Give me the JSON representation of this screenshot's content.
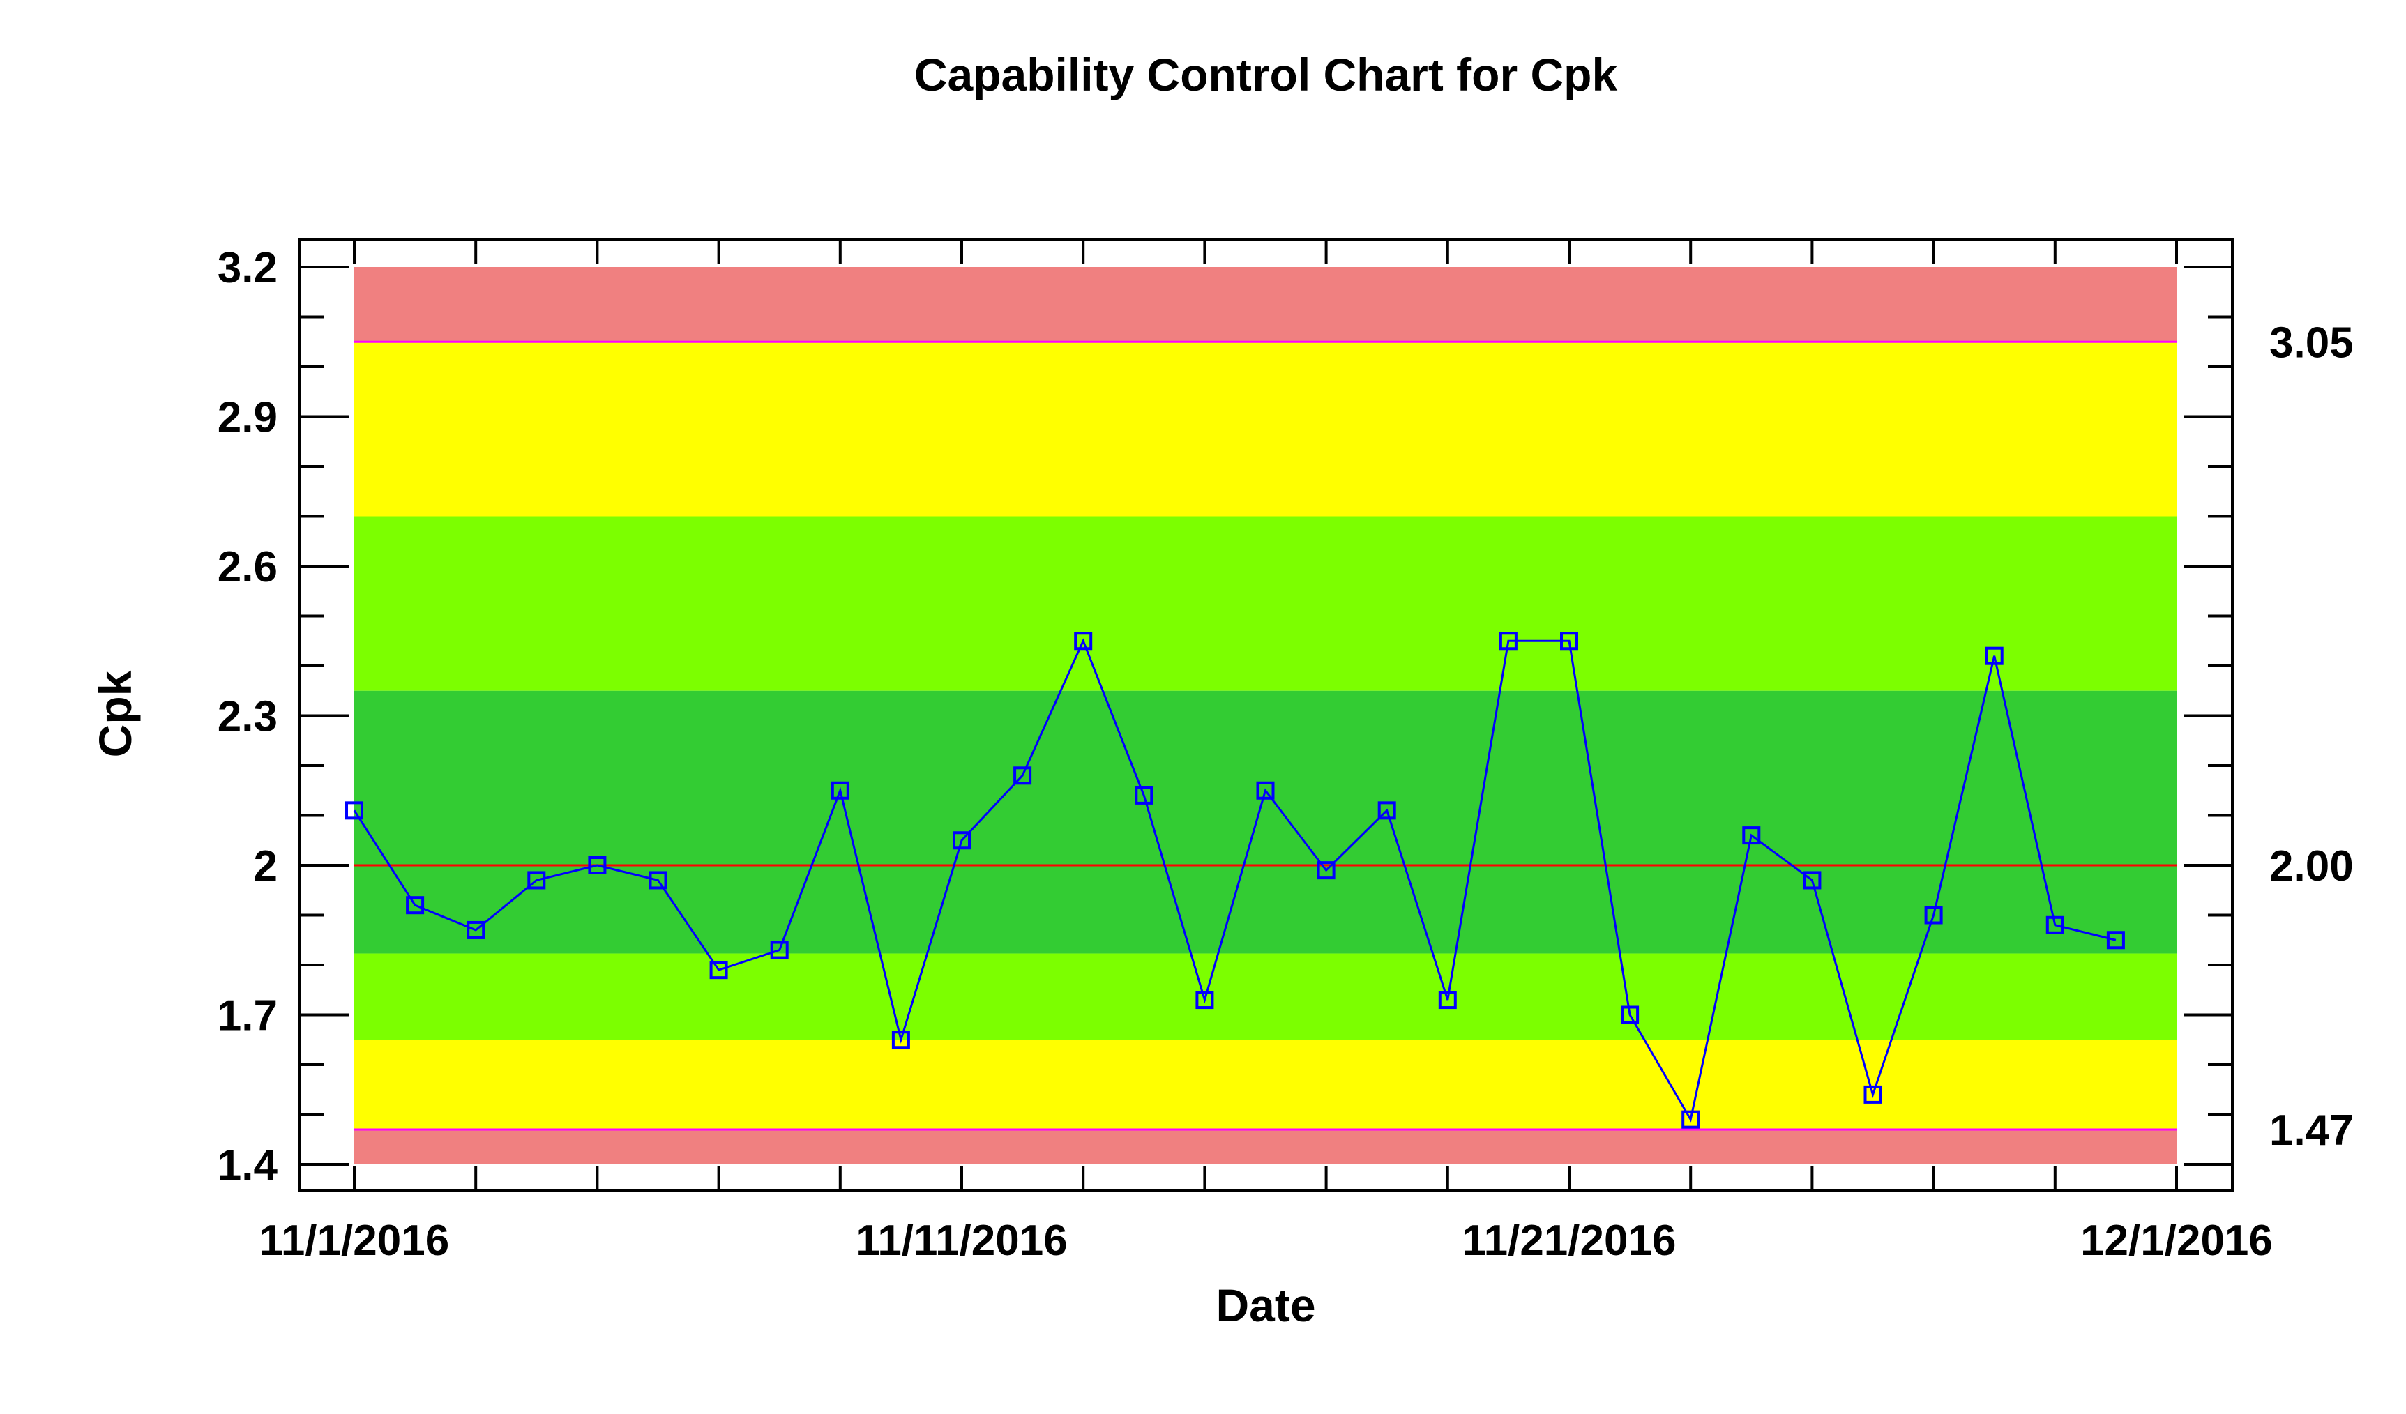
{
  "chart_data": {
    "type": "line",
    "title": "Capability Control Chart for Cpk",
    "xlabel": "Date",
    "ylabel": "Cpk",
    "x": [
      "11/1/2016",
      "11/2/2016",
      "11/3/2016",
      "11/4/2016",
      "11/5/2016",
      "11/6/2016",
      "11/7/2016",
      "11/8/2016",
      "11/9/2016",
      "11/10/2016",
      "11/11/2016",
      "11/12/2016",
      "11/13/2016",
      "11/14/2016",
      "11/15/2016",
      "11/16/2016",
      "11/17/2016",
      "11/18/2016",
      "11/19/2016",
      "11/20/2016",
      "11/21/2016",
      "11/22/2016",
      "11/23/2016",
      "11/24/2016",
      "11/25/2016",
      "11/26/2016",
      "11/27/2016",
      "11/28/2016",
      "11/29/2016",
      "11/30/2016"
    ],
    "series": [
      {
        "values": [
          2.11,
          1.92,
          1.87,
          1.97,
          2.0,
          1.97,
          1.79,
          1.83,
          2.15,
          1.65,
          2.05,
          2.18,
          2.45,
          2.14,
          1.73,
          2.15,
          1.99,
          2.11,
          1.73,
          2.45,
          2.45,
          1.7,
          1.49,
          2.06,
          1.97,
          1.54,
          1.9,
          2.42,
          1.88,
          1.85
        ],
        "color": "#0000ff",
        "marker": "square"
      }
    ],
    "xlim": [
      "11/1/2016",
      "12/1/2016"
    ],
    "ylim": [
      1.4,
      3.2
    ],
    "x_tick_labels": [
      "11/1/2016",
      "11/11/2016",
      "11/21/2016",
      "12/1/2016"
    ],
    "y_tick_labels": [
      "3.2",
      "2.9",
      "2.6",
      "2.3",
      "2",
      "1.7",
      "1.4"
    ],
    "y_ticks": [
      3.2,
      2.9,
      2.6,
      2.3,
      2.0,
      1.7,
      1.4
    ],
    "right_axis_labels": [
      "3.05",
      "2.00",
      "1.47"
    ],
    "right_axis_values": [
      3.05,
      2.0,
      1.47
    ],
    "center_line": {
      "value": 2.0,
      "color": "#ff0000"
    },
    "limit_lines": {
      "values": [
        3.05,
        1.47
      ],
      "color": "#ff00ff"
    },
    "zones": [
      {
        "from": 3.05,
        "to": 3.2,
        "color": "#f08080"
      },
      {
        "from": 2.7,
        "to": 3.05,
        "color": "#ffff00"
      },
      {
        "from": 2.35,
        "to": 2.7,
        "color": "#7cff00"
      },
      {
        "from": 1.823,
        "to": 2.35,
        "color": "#33cc33"
      },
      {
        "from": 1.65,
        "to": 1.823,
        "color": "#7cff00"
      },
      {
        "from": 1.47,
        "to": 1.65,
        "color": "#ffff00"
      },
      {
        "from": 1.4,
        "to": 1.47,
        "color": "#f08080"
      }
    ],
    "grid": false,
    "legend": "none"
  }
}
